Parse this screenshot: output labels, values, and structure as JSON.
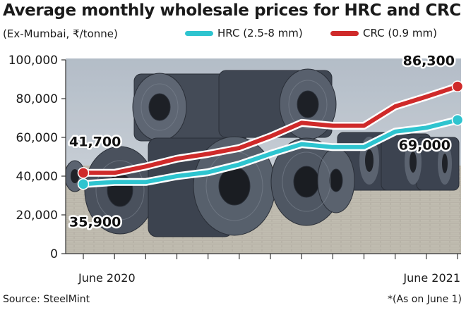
{
  "header": {
    "title": "Average monthly wholesale prices for HRC and CRC",
    "subtitle": "(Ex-Mumbai, ₹/tonne)"
  },
  "footer": {
    "source": "Source: SteelMint",
    "footnote": "*(As on June 1)"
  },
  "background": {
    "description_icon": "steel-coils-photo"
  },
  "colors": {
    "hrc": "#2ec4cf",
    "crc": "#cf2a2a",
    "axis": "#333333"
  },
  "chart_data": {
    "type": "line",
    "title": "Average monthly wholesale prices for HRC and CRC",
    "subtitle": "(Ex-Mumbai, ₹/tonne)",
    "xlabel": "",
    "ylabel": "",
    "ylim": [
      0,
      100000
    ],
    "yticks": [
      0,
      20000,
      40000,
      60000,
      80000,
      100000
    ],
    "ytick_labels": [
      "0",
      "20,000",
      "40,000",
      "60,000",
      "80,000",
      "100,000"
    ],
    "x_labels": [
      "June 2020",
      "June 2021"
    ],
    "legend_position": "top",
    "grid": false,
    "series": [
      {
        "name": "HRC (2.5-8 mm)",
        "color": "#2ec4cf",
        "values": [
          35900,
          37000,
          37000,
          40000,
          42000,
          46000,
          51500,
          56500,
          55000,
          55000,
          63000,
          65000,
          69000
        ],
        "labels": [
          {
            "index": 0,
            "text": "35,900"
          },
          {
            "index": 12,
            "text": "69,000"
          }
        ]
      },
      {
        "name": "CRC (0.9 mm)",
        "color": "#cf2a2a",
        "values": [
          41700,
          41700,
          45000,
          49000,
          51500,
          54500,
          60500,
          67500,
          66000,
          66000,
          76000,
          81000,
          86300
        ],
        "labels": [
          {
            "index": 0,
            "text": "41,700"
          },
          {
            "index": 12,
            "text": "86,300"
          }
        ]
      }
    ]
  }
}
